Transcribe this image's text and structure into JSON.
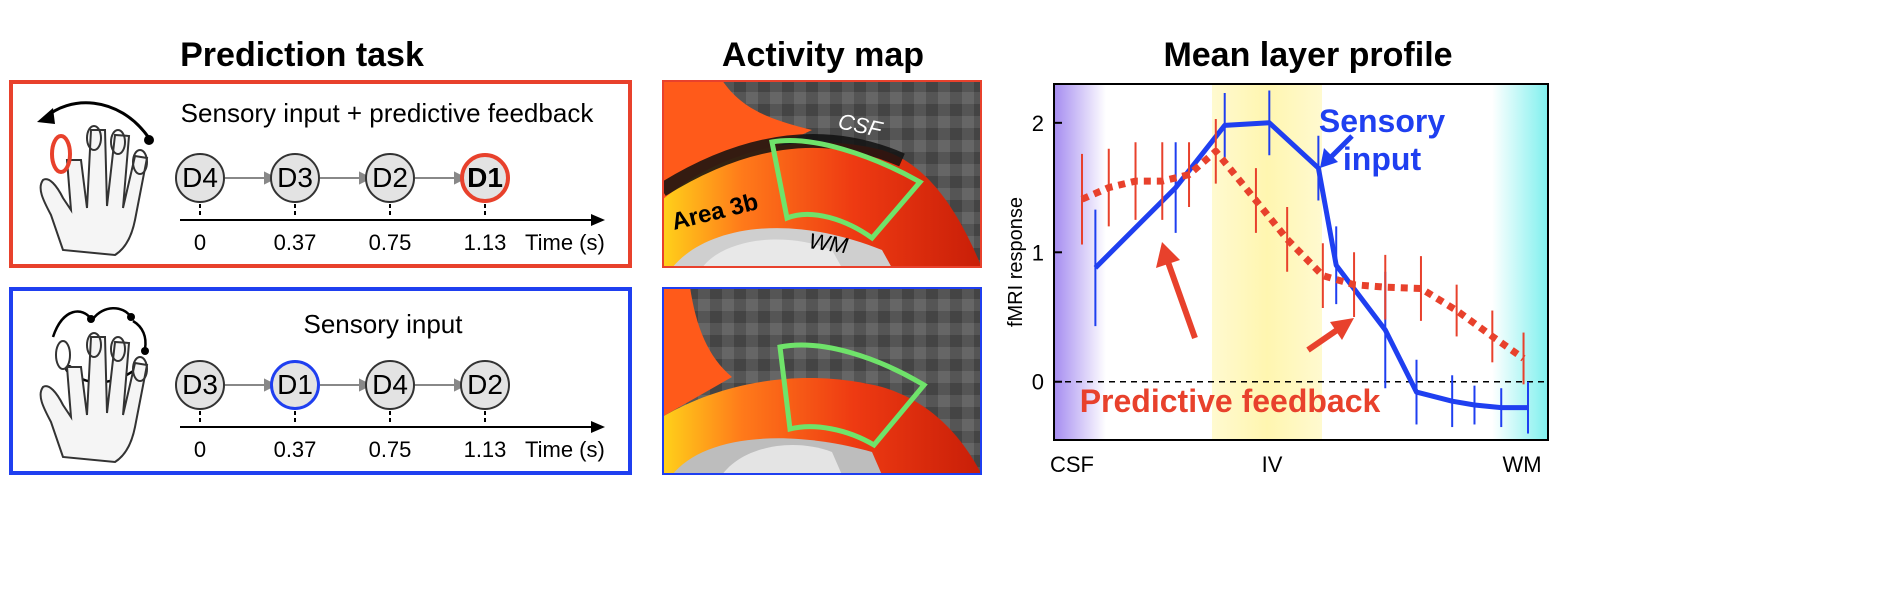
{
  "headings": {
    "prediction": "Prediction task",
    "activity": "Activity map",
    "profile": "Mean layer profile"
  },
  "panels": {
    "top": {
      "title": "Sensory input + predictive feedback",
      "sequence": [
        "D4",
        "D3",
        "D2",
        "D1"
      ],
      "times": [
        "0",
        "0.37",
        "0.75",
        "1.13"
      ],
      "time_label": "Time (s)"
    },
    "bottom": {
      "title": "Sensory input",
      "sequence": [
        "D3",
        "D1",
        "D4",
        "D2"
      ],
      "times": [
        "0",
        "0.37",
        "0.75",
        "1.13"
      ],
      "time_label": "Time (s)"
    }
  },
  "map_labels": {
    "csf": "CSF",
    "area": "Area 3b",
    "wm": "WM"
  },
  "colors": {
    "red": "#e8412c",
    "blue": "#1f3ff0",
    "roi": "#6fe36a"
  },
  "chart_data": {
    "type": "line",
    "title": "Mean layer profile",
    "ylabel": "fMRI response",
    "ylim": [
      -0.45,
      2.3
    ],
    "yticks": [
      0,
      1,
      2
    ],
    "xticks": [
      "CSF",
      "IV",
      "WM"
    ],
    "series": [
      {
        "name": "Sensory input",
        "style": "solid",
        "color": "#1f3ff0",
        "x": [
          0.03,
          0.21,
          0.32,
          0.42,
          0.53,
          0.57,
          0.68,
          0.75,
          0.83,
          0.88,
          0.94,
          1.0
        ],
        "y": [
          0.88,
          1.5,
          1.98,
          2.0,
          1.65,
          0.9,
          0.4,
          -0.08,
          -0.15,
          -0.18,
          -0.2,
          -0.2
        ],
        "err": [
          0.45,
          0.35,
          0.25,
          0.25,
          0.25,
          0.3,
          0.45,
          0.25,
          0.2,
          0.15,
          0.15,
          0.2
        ]
      },
      {
        "name": "Predictive feedback",
        "style": "dotted",
        "color": "#e8412c",
        "x": [
          0.0,
          0.06,
          0.12,
          0.18,
          0.24,
          0.3,
          0.39,
          0.46,
          0.54,
          0.61,
          0.68,
          0.76,
          0.84,
          0.92,
          0.99
        ],
        "y": [
          1.41,
          1.5,
          1.55,
          1.55,
          1.6,
          1.78,
          1.4,
          1.1,
          0.82,
          0.75,
          0.73,
          0.72,
          0.55,
          0.35,
          0.18
        ],
        "err": [
          0.35,
          0.3,
          0.3,
          0.3,
          0.25,
          0.25,
          0.25,
          0.25,
          0.25,
          0.25,
          0.25,
          0.25,
          0.2,
          0.2,
          0.2
        ]
      }
    ],
    "annotations": {
      "sensory": [
        "Sensory",
        "input"
      ],
      "predictive": "Predictive feedback"
    },
    "bands": [
      "purple (CSF)",
      "yellow (layer IV)",
      "cyan (WM)"
    ]
  }
}
